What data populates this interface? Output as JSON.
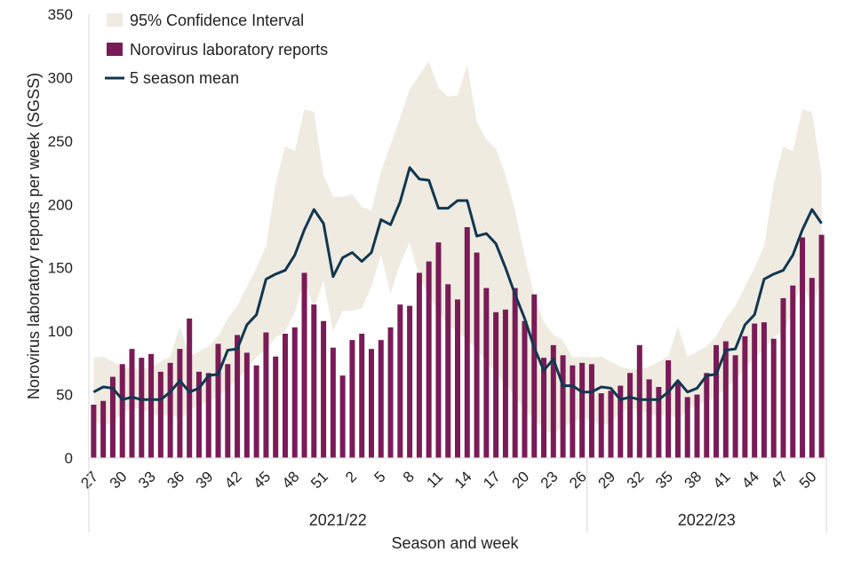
{
  "chart_data": {
    "type": "bar",
    "title": "",
    "xlabel": "Season and week",
    "ylabel": "Norovirus laboratory reports per week (SGSS)",
    "ylim": [
      0,
      350
    ],
    "yticks": [
      0,
      50,
      100,
      150,
      200,
      250,
      300,
      350
    ],
    "grid": false,
    "legend_position": "top-left",
    "seasons": [
      {
        "label": "2021/22",
        "weeks": 52
      },
      {
        "label": "2022/23",
        "weeks": 25
      }
    ],
    "weeks": [
      27,
      28,
      29,
      30,
      31,
      32,
      33,
      34,
      35,
      36,
      37,
      38,
      39,
      40,
      41,
      42,
      43,
      44,
      45,
      46,
      47,
      48,
      49,
      50,
      51,
      52,
      1,
      2,
      3,
      4,
      5,
      6,
      7,
      8,
      9,
      10,
      11,
      12,
      13,
      14,
      15,
      16,
      17,
      18,
      19,
      20,
      21,
      22,
      23,
      24,
      25,
      26,
      27,
      28,
      29,
      30,
      31,
      32,
      33,
      34,
      35,
      36,
      37,
      38,
      39,
      40,
      41,
      42,
      43,
      44,
      45,
      46,
      47,
      48,
      49,
      50,
      51
    ],
    "tick_labels": [
      "27",
      "30",
      "33",
      "36",
      "39",
      "42",
      "45",
      "48",
      "51",
      "2",
      "5",
      "8",
      "11",
      "14",
      "17",
      "20",
      "23",
      "26",
      "29",
      "32",
      "35",
      "38",
      "41",
      "44",
      "47",
      "50"
    ],
    "series": [
      {
        "name": "95% Confidence Interval",
        "kind": "band",
        "upper": [
          79,
          80,
          76,
          72,
          70,
          70,
          72,
          76,
          80,
          104,
          80,
          84,
          88,
          96,
          110,
          120,
          135,
          150,
          167,
          216,
          246,
          242,
          275,
          273,
          223,
          206,
          206,
          208,
          198,
          195,
          226,
          247,
          268,
          291,
          302,
          313,
          292,
          285,
          286,
          310,
          265,
          251,
          244,
          223,
          195,
          160,
          128,
          107,
          97,
          93,
          79,
          80,
          79,
          80,
          76,
          72,
          70,
          70,
          72,
          76,
          80,
          104,
          80,
          84,
          88,
          96,
          110,
          120,
          135,
          150,
          167,
          216,
          246,
          242,
          275,
          273,
          223
        ],
        "lower": [
          30,
          25,
          28,
          35,
          40,
          38,
          35,
          33,
          35,
          30,
          38,
          42,
          45,
          48,
          55,
          62,
          70,
          80,
          85,
          95,
          100,
          115,
          140,
          118,
          140,
          100,
          116,
          116,
          118,
          135,
          160,
          130,
          153,
          170,
          142,
          128,
          116,
          104,
          100,
          93,
          86,
          76,
          67,
          58,
          48,
          39,
          30,
          23,
          18,
          25,
          27,
          32,
          30,
          25,
          28,
          35,
          40,
          38,
          35,
          33,
          35,
          30,
          38,
          42,
          45,
          48,
          55,
          62,
          70,
          80,
          85,
          95,
          100,
          115,
          140,
          118,
          140
        ]
      },
      {
        "name": "Norovirus laboratory reports",
        "kind": "bar",
        "values": [
          42,
          45,
          64,
          74,
          86,
          79,
          82,
          68,
          75,
          86,
          110,
          68,
          67,
          90,
          74,
          97,
          83,
          73,
          99,
          80,
          98,
          103,
          146,
          121,
          108,
          87,
          65,
          93,
          98,
          86,
          93,
          103,
          121,
          120,
          146,
          155,
          170,
          137,
          125,
          182,
          162,
          134,
          115,
          117,
          134,
          108,
          129,
          79,
          89,
          81,
          73,
          75,
          74,
          51,
          53,
          57,
          67,
          89,
          62,
          56,
          77,
          60,
          48,
          50,
          67,
          89,
          92,
          81,
          96,
          106,
          107,
          94,
          126,
          136,
          174,
          142,
          176
        ]
      },
      {
        "name": "5 season mean",
        "kind": "line",
        "values": [
          52,
          56,
          55,
          46,
          48,
          46,
          46,
          46,
          52,
          61,
          52,
          55,
          65,
          66,
          85,
          86,
          105,
          113,
          141,
          145,
          148,
          160,
          180,
          196,
          185,
          143,
          158,
          162,
          155,
          162,
          188,
          184,
          202,
          229,
          220,
          219,
          197,
          197,
          203,
          203,
          175,
          177,
          169,
          150,
          129,
          110,
          87,
          69,
          78,
          57,
          57,
          52,
          52,
          56,
          55,
          46,
          48,
          46,
          46,
          46,
          52,
          61,
          52,
          55,
          65,
          66,
          85,
          86,
          105,
          113,
          141,
          145,
          148,
          160,
          180,
          196,
          185
        ]
      }
    ],
    "colors": {
      "band": "#EFEBE1",
      "bar": "#7A1B57",
      "line": "#12374F"
    }
  }
}
